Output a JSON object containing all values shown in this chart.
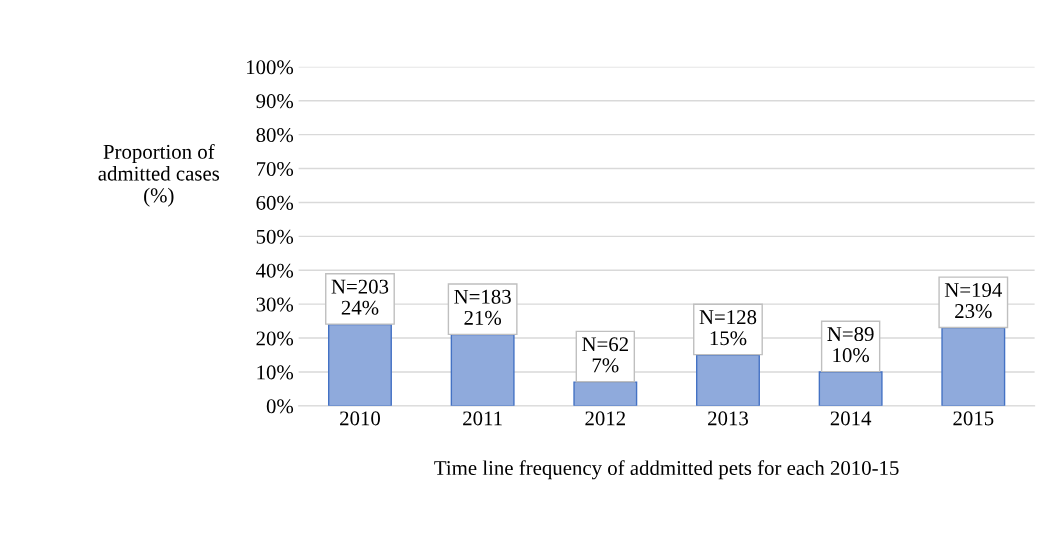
{
  "chart_data": {
    "type": "bar",
    "xlabel": "Time line frequency of addmitted pets for each 2010-15",
    "ylabel": "Proportion of\nadmitted cases\n(%)",
    "categories": [
      "2010",
      "2011",
      "2012",
      "2013",
      "2014",
      "2015"
    ],
    "values": [
      24,
      21,
      7,
      15,
      10,
      23
    ],
    "value_labels": [
      "N=203\n24%",
      "N=183\n21%",
      "N=62\n7%",
      "N=128\n15%",
      "N=89\n10%",
      "N=194\n23%"
    ],
    "color": "#8faadc",
    "ylim": [
      0,
      100
    ],
    "yticks": [
      {
        "value": 0,
        "label": "0%"
      },
      {
        "value": 10,
        "label": "10%"
      },
      {
        "value": 20,
        "label": "20%"
      },
      {
        "value": 30,
        "label": "30%"
      },
      {
        "value": 40,
        "label": "40%"
      },
      {
        "value": 50,
        "label": "50%"
      },
      {
        "value": 60,
        "label": "60%"
      },
      {
        "value": 70,
        "label": "70%"
      },
      {
        "value": 80,
        "label": "80%"
      },
      {
        "value": 90,
        "label": "90%"
      },
      {
        "value": 100,
        "label": "100%"
      }
    ],
    "grid": "y",
    "legend": false
  }
}
